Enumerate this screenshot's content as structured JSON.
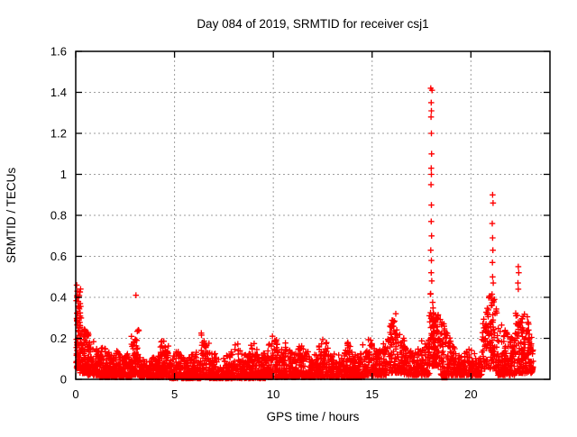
{
  "chart_data": {
    "type": "scatter",
    "title": "Day 084 of 2019, SRMTID for receiver csj1",
    "xlabel": "GPS time / hours",
    "ylabel": "SRMTID / TECUs",
    "xlim": [
      0,
      24
    ],
    "ylim": [
      0,
      1.6
    ],
    "xticks": [
      [
        0,
        "0"
      ],
      [
        5,
        "5"
      ],
      [
        10,
        "10"
      ],
      [
        15,
        "15"
      ],
      [
        20,
        "20"
      ]
    ],
    "yticks": [
      [
        0,
        "0"
      ],
      [
        0.2,
        "0.2"
      ],
      [
        0.4,
        "0.4"
      ],
      [
        0.6,
        "0.6"
      ],
      [
        0.8,
        "0.8"
      ],
      [
        1,
        "1"
      ],
      [
        1.2,
        "1.2"
      ],
      [
        1.4,
        "1.4"
      ],
      [
        1.6,
        "1.6"
      ]
    ],
    "grid": true,
    "legend_position": "none",
    "marker": "plus",
    "marker_color": "#ff0000",
    "grid_color": "#9e9e9e",
    "axis_color": "#000000",
    "background_color": "#ffffff",
    "seed": 840,
    "clusters": [
      {
        "x0": 0.02,
        "x1": 0.25,
        "n": 70,
        "ymin": 0.04,
        "ymax": 0.46,
        "skew": 1.1
      },
      {
        "x0": 0.2,
        "x1": 0.65,
        "n": 90,
        "ymin": 0.03,
        "ymax": 0.34,
        "skew": 1.6
      },
      {
        "x0": 0.6,
        "x1": 1.2,
        "n": 100,
        "ymin": 0.02,
        "ymax": 0.2,
        "skew": 2.0
      },
      {
        "x0": 1.2,
        "x1": 2.1,
        "n": 150,
        "ymin": 0.01,
        "ymax": 0.17,
        "skew": 2.2
      },
      {
        "x0": 2.1,
        "x1": 2.85,
        "n": 120,
        "ymin": 0.01,
        "ymax": 0.16,
        "skew": 2.2
      },
      {
        "x0": 2.8,
        "x1": 3.2,
        "n": 60,
        "ymin": 0.02,
        "ymax": 0.31,
        "skew": 1.5
      },
      {
        "x0": 3.2,
        "x1": 4.25,
        "n": 160,
        "ymin": 0.01,
        "ymax": 0.13,
        "skew": 2.3
      },
      {
        "x0": 4.25,
        "x1": 4.7,
        "n": 70,
        "ymin": 0.01,
        "ymax": 0.21,
        "skew": 1.9
      },
      {
        "x0": 4.7,
        "x1": 6.35,
        "n": 240,
        "ymin": 0.005,
        "ymax": 0.14,
        "skew": 2.3
      },
      {
        "x0": 6.35,
        "x1": 6.75,
        "n": 60,
        "ymin": 0.01,
        "ymax": 0.25,
        "skew": 1.7
      },
      {
        "x0": 6.75,
        "x1": 8.0,
        "n": 190,
        "ymin": 0.005,
        "ymax": 0.14,
        "skew": 2.3
      },
      {
        "x0": 8.0,
        "x1": 9.6,
        "n": 240,
        "ymin": 0.005,
        "ymax": 0.18,
        "skew": 2.2
      },
      {
        "x0": 9.6,
        "x1": 10.3,
        "n": 105,
        "ymin": 0.01,
        "ymax": 0.22,
        "skew": 2.0
      },
      {
        "x0": 10.3,
        "x1": 11.9,
        "n": 240,
        "ymin": 0.01,
        "ymax": 0.18,
        "skew": 2.1
      },
      {
        "x0": 11.9,
        "x1": 13.1,
        "n": 180,
        "ymin": 0.01,
        "ymax": 0.2,
        "skew": 2.0
      },
      {
        "x0": 13.1,
        "x1": 14.6,
        "n": 220,
        "ymin": 0.01,
        "ymax": 0.18,
        "skew": 2.1
      },
      {
        "x0": 14.6,
        "x1": 15.8,
        "n": 180,
        "ymin": 0.02,
        "ymax": 0.2,
        "skew": 2.0
      },
      {
        "x0": 15.8,
        "x1": 16.6,
        "n": 120,
        "ymin": 0.03,
        "ymax": 0.3,
        "skew": 1.5
      },
      {
        "x0": 16.6,
        "x1": 17.55,
        "n": 130,
        "ymin": 0.02,
        "ymax": 0.19,
        "skew": 2.0
      },
      {
        "x0": 17.55,
        "x1": 17.9,
        "n": 45,
        "ymin": 0.02,
        "ymax": 0.24,
        "skew": 1.7
      },
      {
        "x0": 17.9,
        "x1": 18.35,
        "n": 100,
        "ymin": 0.06,
        "ymax": 0.46,
        "skew": 1.1
      },
      {
        "x0": 18.3,
        "x1": 19.0,
        "n": 95,
        "ymin": 0.02,
        "ymax": 0.3,
        "skew": 1.7
      },
      {
        "x0": 19.0,
        "x1": 20.55,
        "n": 210,
        "ymin": 0.02,
        "ymax": 0.16,
        "skew": 2.1
      },
      {
        "x0": 20.55,
        "x1": 21.35,
        "n": 120,
        "ymin": 0.05,
        "ymax": 0.45,
        "skew": 1.3
      },
      {
        "x0": 21.35,
        "x1": 22.25,
        "n": 140,
        "ymin": 0.02,
        "ymax": 0.3,
        "skew": 1.7
      },
      {
        "x0": 22.25,
        "x1": 22.65,
        "n": 65,
        "ymin": 0.03,
        "ymax": 0.42,
        "skew": 1.4
      },
      {
        "x0": 22.6,
        "x1": 23.15,
        "n": 90,
        "ymin": 0.03,
        "ymax": 0.33,
        "skew": 1.5
      }
    ],
    "outliers": [
      [
        0.05,
        0.46
      ],
      [
        0.08,
        0.43
      ],
      [
        0.06,
        0.4
      ],
      [
        3.05,
        0.41
      ],
      [
        16.2,
        0.32
      ],
      [
        17.97,
        1.42
      ],
      [
        18.03,
        1.41
      ],
      [
        17.99,
        1.35
      ],
      [
        18.0,
        1.31
      ],
      [
        17.98,
        1.28
      ],
      [
        18.0,
        1.2
      ],
      [
        18.01,
        1.1
      ],
      [
        17.99,
        1.03
      ],
      [
        18.0,
        1.0
      ],
      [
        17.98,
        0.95
      ],
      [
        18.0,
        0.85
      ],
      [
        17.99,
        0.77
      ],
      [
        18.01,
        0.7
      ],
      [
        17.97,
        0.63
      ],
      [
        18.0,
        0.58
      ],
      [
        17.99,
        0.52
      ],
      [
        18.02,
        0.48
      ],
      [
        21.1,
        0.9
      ],
      [
        21.12,
        0.86
      ],
      [
        21.08,
        0.76
      ],
      [
        21.1,
        0.69
      ],
      [
        21.11,
        0.63
      ],
      [
        21.09,
        0.57
      ],
      [
        21.1,
        0.5
      ],
      [
        21.13,
        0.47
      ],
      [
        22.4,
        0.55
      ],
      [
        22.42,
        0.52
      ],
      [
        22.38,
        0.47
      ],
      [
        22.4,
        0.44
      ]
    ],
    "square_points": [
      [
        6.67,
        0.01
      ],
      [
        18.66,
        0.01
      ]
    ]
  }
}
